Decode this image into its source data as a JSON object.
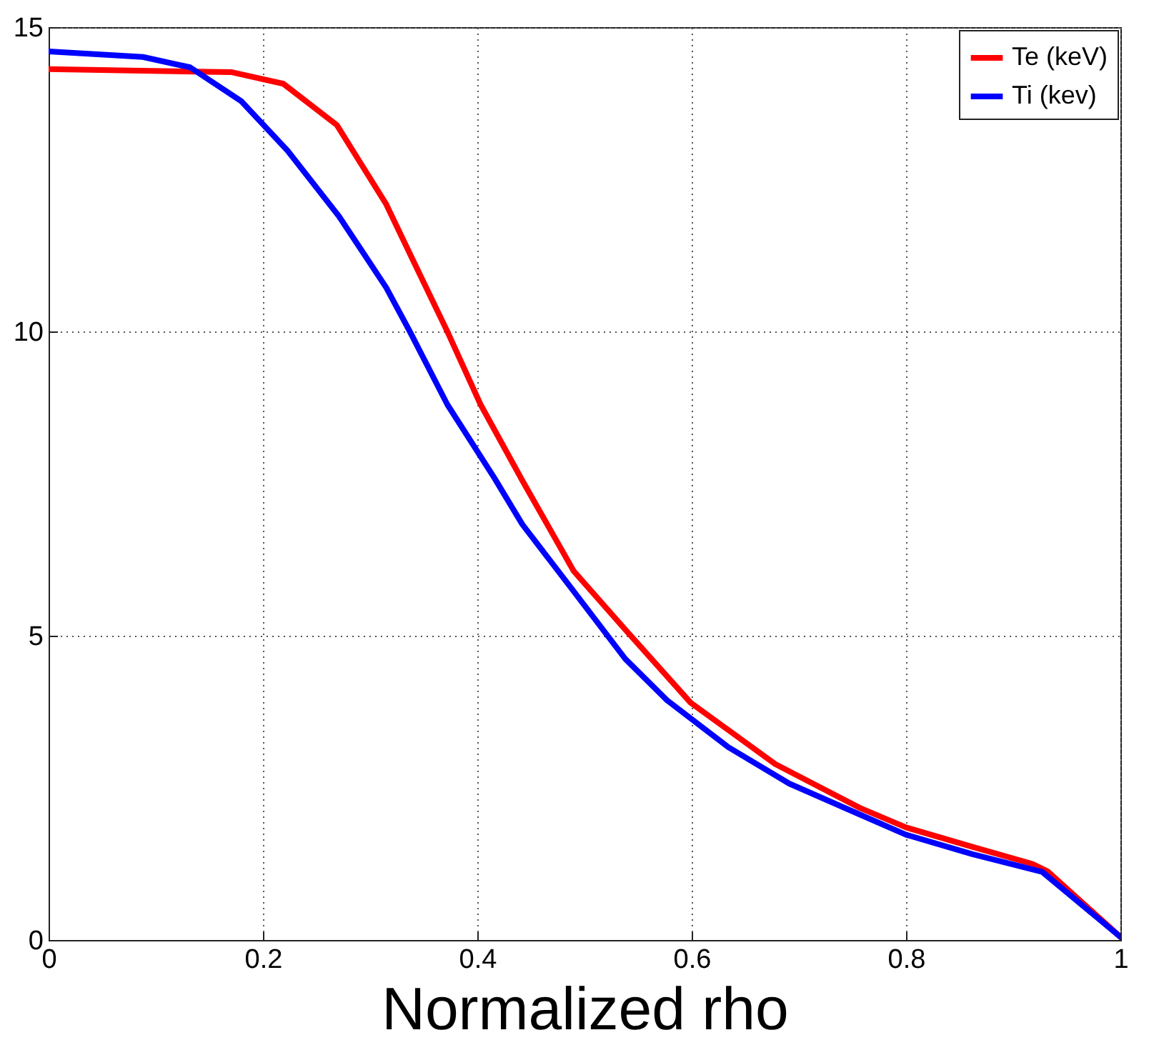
{
  "chart_data": {
    "type": "line",
    "xlabel": "Normalized  rho",
    "xlim": [
      0,
      1
    ],
    "ylim": [
      0,
      15
    ],
    "xticks": [
      0,
      0.2,
      0.4,
      0.6,
      0.8,
      1
    ],
    "yticks": [
      0,
      5,
      10,
      15
    ],
    "grid": true,
    "legend": "top right",
    "line_style": "solid",
    "marker": "none",
    "series": [
      {
        "name": "Te (keV)",
        "color": "#ff0000",
        "x": [
          0,
          0.171,
          0.219,
          0.269,
          0.315,
          0.337,
          0.372,
          0.403,
          0.442,
          0.49,
          0.538,
          0.599,
          0.678,
          0.757,
          0.8,
          0.862,
          0.918,
          0.932,
          1
        ],
        "values": [
          14.31,
          14.26,
          14.07,
          13.39,
          12.09,
          11.28,
          10.0,
          8.8,
          7.55,
          6.06,
          5.1,
          3.9,
          2.89,
          2.17,
          1.85,
          1.53,
          1.25,
          1.13,
          0.05
        ]
      },
      {
        "name": "Ti (kev)",
        "color": "#0000ff",
        "x": [
          0,
          0.088,
          0.132,
          0.18,
          0.223,
          0.271,
          0.315,
          0.337,
          0.372,
          0.416,
          0.442,
          0.486,
          0.538,
          0.577,
          0.634,
          0.691,
          0.748,
          0.8,
          0.862,
          0.927,
          1
        ],
        "values": [
          14.6,
          14.51,
          14.34,
          13.78,
          12.97,
          11.89,
          10.72,
          10.0,
          8.8,
          7.59,
          6.83,
          5.82,
          4.62,
          3.94,
          3.17,
          2.57,
          2.13,
          1.73,
          1.41,
          1.12,
          0.05
        ]
      }
    ]
  }
}
